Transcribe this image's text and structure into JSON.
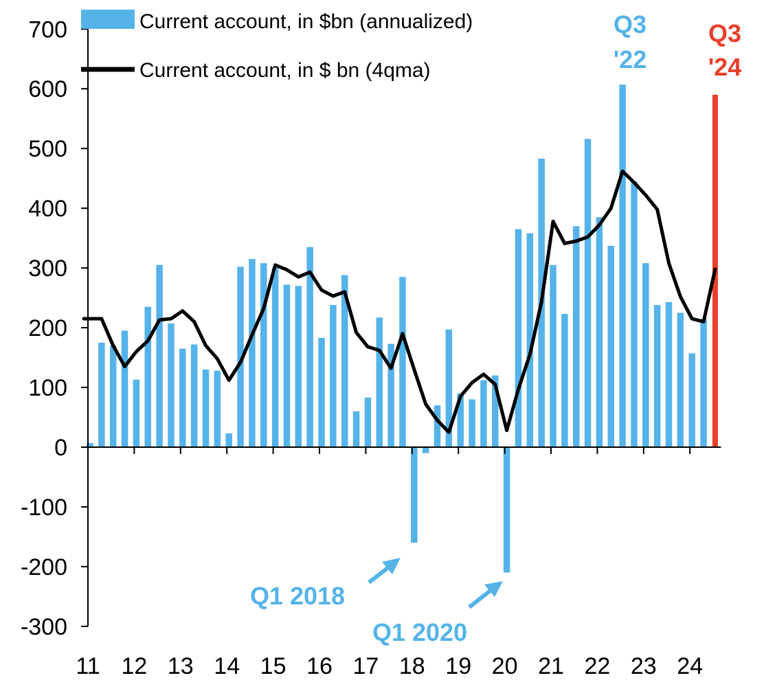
{
  "colors": {
    "bar": "#55b3ea",
    "line": "#000000",
    "highlight": "#e8402a",
    "axis": "#000000"
  },
  "chart_data": {
    "type": "bar",
    "title": "",
    "xlabel": "",
    "ylabel": "",
    "ylim": [
      -300,
      700
    ],
    "yticks": [
      700,
      600,
      500,
      400,
      300,
      200,
      100,
      0,
      -100,
      -200,
      -300
    ],
    "xticks": [
      "11",
      "12",
      "13",
      "14",
      "15",
      "16",
      "17",
      "18",
      "19",
      "20",
      "21",
      "22",
      "23",
      "24"
    ],
    "legend": {
      "position": "top-left"
    },
    "grid": false,
    "categories": [
      "Q1 2011",
      "Q2 2011",
      "Q3 2011",
      "Q4 2011",
      "Q1 2012",
      "Q2 2012",
      "Q3 2012",
      "Q4 2012",
      "Q1 2013",
      "Q2 2013",
      "Q3 2013",
      "Q4 2013",
      "Q1 2014",
      "Q2 2014",
      "Q3 2014",
      "Q4 2014",
      "Q1 2015",
      "Q2 2015",
      "Q3 2015",
      "Q4 2015",
      "Q1 2016",
      "Q2 2016",
      "Q3 2016",
      "Q4 2016",
      "Q1 2017",
      "Q2 2017",
      "Q3 2017",
      "Q4 2017",
      "Q1 2018",
      "Q2 2018",
      "Q3 2018",
      "Q4 2018",
      "Q1 2019",
      "Q2 2019",
      "Q3 2019",
      "Q4 2019",
      "Q1 2020",
      "Q2 2020",
      "Q3 2020",
      "Q4 2020",
      "Q1 2021",
      "Q2 2021",
      "Q3 2021",
      "Q4 2021",
      "Q1 2022",
      "Q2 2022",
      "Q3 2022",
      "Q4 2022",
      "Q1 2023",
      "Q2 2023",
      "Q3 2023",
      "Q4 2023",
      "Q1 2024",
      "Q2 2024",
      "Q3 2024"
    ],
    "series": [
      {
        "name": "Current account, in $bn (annualized)",
        "type": "bar",
        "values": [
          7,
          175,
          170,
          195,
          113,
          235,
          305,
          207,
          165,
          172,
          130,
          128,
          23,
          302,
          315,
          308,
          300,
          272,
          270,
          335,
          183,
          238,
          288,
          60,
          83,
          217,
          173,
          285,
          -160,
          -10,
          70,
          197,
          90,
          80,
          112,
          120,
          -210,
          365,
          358,
          483,
          305,
          223,
          370,
          516,
          385,
          337,
          607,
          445,
          308,
          238,
          243,
          225,
          157,
          215,
          590
        ]
      },
      {
        "name": "Current account, in $ bn (4qma)",
        "type": "line",
        "values": [
          215,
          215,
          170,
          135,
          160,
          178,
          213,
          215,
          228,
          210,
          170,
          148,
          112,
          142,
          188,
          232,
          305,
          297,
          285,
          293,
          263,
          253,
          260,
          192,
          168,
          162,
          132,
          190,
          130,
          72,
          45,
          25,
          85,
          108,
          122,
          105,
          28,
          97,
          155,
          243,
          378,
          341,
          345,
          352,
          372,
          400,
          462,
          443,
          422,
          398,
          308,
          252,
          215,
          210,
          298
        ]
      }
    ],
    "highlight_index": 54,
    "annotations": [
      {
        "id": "q3-22",
        "lines": [
          "Q3",
          "'22"
        ],
        "color": "blue"
      },
      {
        "id": "q3-24",
        "lines": [
          "Q3",
          "'24"
        ],
        "color": "red"
      },
      {
        "id": "q1-2018",
        "text": "Q1 2018",
        "color": "blue"
      },
      {
        "id": "q1-2020",
        "text": "Q1 2020",
        "color": "blue"
      }
    ]
  }
}
